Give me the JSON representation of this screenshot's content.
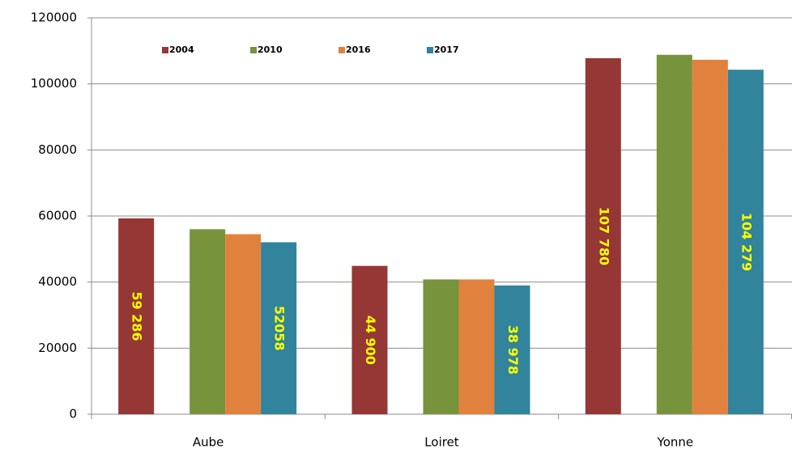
{
  "chart_data": {
    "type": "bar",
    "categories": [
      "Aube",
      "Loiret",
      "Yonne"
    ],
    "series": [
      {
        "name": "2004",
        "color": "#953735",
        "values": [
          59286,
          44900,
          107780
        ],
        "value_labels": [
          "59 286",
          "44 900",
          "107 780"
        ]
      },
      {
        "name": "2010",
        "color": "#77933c",
        "values": [
          56000,
          40800,
          108800
        ]
      },
      {
        "name": "2016",
        "color": "#e0823d",
        "values": [
          54500,
          40800,
          107300
        ]
      },
      {
        "name": "2017",
        "color": "#31849b",
        "values": [
          52058,
          38978,
          104279
        ],
        "value_labels": [
          "52058",
          "38 978",
          "104 279"
        ]
      }
    ],
    "ylim": [
      0,
      120000
    ],
    "yticks": [
      0,
      20000,
      40000,
      60000,
      80000,
      100000,
      120000
    ],
    "grid": true,
    "legend": "top"
  }
}
